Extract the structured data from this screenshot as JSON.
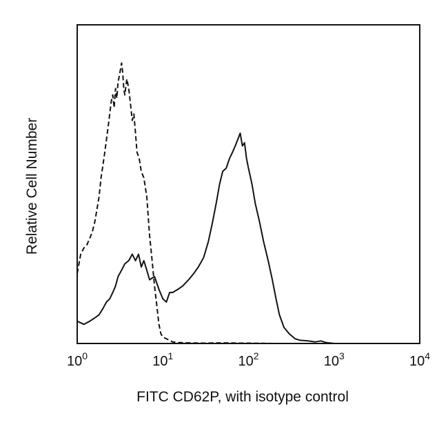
{
  "chart_data": {
    "type": "line",
    "title": "",
    "xlabel": "FITC CD62P, with isotype control",
    "ylabel": "Relative Cell Number",
    "xscale": "log",
    "xlim": [
      1,
      10000
    ],
    "ylim": [
      0,
      100
    ],
    "grid": false,
    "legend": "none",
    "xticks": [
      {
        "value": 1,
        "base": "10",
        "exp": "0"
      },
      {
        "value": 10,
        "base": "10",
        "exp": "1"
      },
      {
        "value": 100,
        "base": "10",
        "exp": "2"
      },
      {
        "value": 1000,
        "base": "10",
        "exp": "3"
      },
      {
        "value": 10000,
        "base": "10",
        "exp": "4"
      }
    ],
    "series": [
      {
        "style": "dashed",
        "color": "#111111",
        "points": [
          [
            1.0,
            22
          ],
          [
            1.1,
            28
          ],
          [
            1.2,
            30
          ],
          [
            1.3,
            31
          ],
          [
            1.4,
            33
          ],
          [
            1.5,
            35
          ],
          [
            1.6,
            38
          ],
          [
            1.7,
            42
          ],
          [
            1.8,
            46
          ],
          [
            1.9,
            52
          ],
          [
            2.0,
            56
          ],
          [
            2.1,
            60
          ],
          [
            2.2,
            64
          ],
          [
            2.3,
            68
          ],
          [
            2.4,
            72
          ],
          [
            2.5,
            76
          ],
          [
            2.6,
            78
          ],
          [
            2.7,
            74
          ],
          [
            2.8,
            80
          ],
          [
            2.9,
            77
          ],
          [
            3.0,
            82
          ],
          [
            3.1,
            84
          ],
          [
            3.2,
            86
          ],
          [
            3.3,
            88
          ],
          [
            3.4,
            85
          ],
          [
            3.5,
            80
          ],
          [
            3.6,
            78
          ],
          [
            3.8,
            83
          ],
          [
            4.0,
            80
          ],
          [
            4.2,
            75
          ],
          [
            4.4,
            70
          ],
          [
            4.6,
            72
          ],
          [
            4.8,
            66
          ],
          [
            5.0,
            60
          ],
          [
            5.3,
            58
          ],
          [
            5.6,
            54
          ],
          [
            6.0,
            52
          ],
          [
            6.5,
            46
          ],
          [
            7.0,
            34
          ],
          [
            7.5,
            26
          ],
          [
            8.0,
            18
          ],
          [
            8.5,
            12
          ],
          [
            9.0,
            6
          ],
          [
            9.5,
            3
          ],
          [
            10.0,
            2
          ],
          [
            11,
            1.5
          ],
          [
            12,
            1
          ],
          [
            13,
            0.5
          ],
          [
            15,
            0.3
          ],
          [
            20,
            0.2
          ],
          [
            30,
            0.1
          ],
          [
            50,
            0.2
          ],
          [
            80,
            0.1
          ],
          [
            100,
            0.1
          ],
          [
            200,
            0
          ],
          [
            1000,
            0
          ],
          [
            10000,
            0
          ]
        ]
      },
      {
        "style": "solid",
        "color": "#111111",
        "points": [
          [
            1.0,
            7
          ],
          [
            1.2,
            6
          ],
          [
            1.4,
            7
          ],
          [
            1.6,
            8
          ],
          [
            1.8,
            9
          ],
          [
            2.0,
            11
          ],
          [
            2.2,
            13
          ],
          [
            2.4,
            14
          ],
          [
            2.6,
            16
          ],
          [
            2.8,
            18
          ],
          [
            3.0,
            21
          ],
          [
            3.3,
            23
          ],
          [
            3.6,
            25
          ],
          [
            4.0,
            26
          ],
          [
            4.4,
            28
          ],
          [
            4.8,
            26
          ],
          [
            5.2,
            28
          ],
          [
            5.6,
            24
          ],
          [
            6.0,
            26
          ],
          [
            6.5,
            23
          ],
          [
            7.0,
            20
          ],
          [
            8.0,
            21
          ],
          [
            9.0,
            17
          ],
          [
            10.0,
            14
          ],
          [
            11,
            13
          ],
          [
            12,
            16
          ],
          [
            13,
            16
          ],
          [
            15,
            17
          ],
          [
            17,
            18
          ],
          [
            20,
            20
          ],
          [
            23,
            22
          ],
          [
            26,
            24
          ],
          [
            30,
            27
          ],
          [
            34,
            32
          ],
          [
            38,
            38
          ],
          [
            42,
            44
          ],
          [
            46,
            50
          ],
          [
            50,
            54
          ],
          [
            55,
            55
          ],
          [
            60,
            58
          ],
          [
            65,
            60
          ],
          [
            70,
            62
          ],
          [
            75,
            64
          ],
          [
            80,
            66
          ],
          [
            85,
            62
          ],
          [
            90,
            63
          ],
          [
            95,
            58
          ],
          [
            100,
            55
          ],
          [
            110,
            50
          ],
          [
            120,
            44
          ],
          [
            135,
            38
          ],
          [
            150,
            32
          ],
          [
            170,
            26
          ],
          [
            190,
            20
          ],
          [
            210,
            14
          ],
          [
            230,
            9
          ],
          [
            260,
            5
          ],
          [
            300,
            3
          ],
          [
            350,
            1.5
          ],
          [
            400,
            1
          ],
          [
            500,
            0.8
          ],
          [
            600,
            0.5
          ],
          [
            700,
            0.8
          ],
          [
            800,
            0.3
          ],
          [
            1000,
            0
          ],
          [
            2000,
            0
          ],
          [
            5000,
            0
          ],
          [
            10000,
            0
          ]
        ]
      }
    ]
  }
}
